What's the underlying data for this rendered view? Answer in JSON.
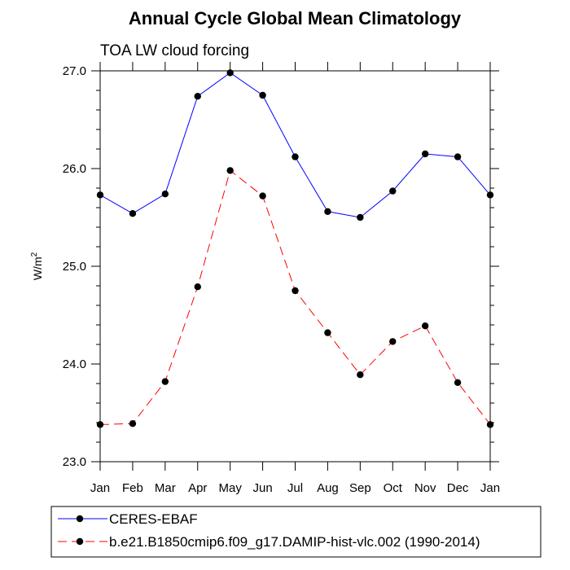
{
  "chart_data": {
    "type": "line",
    "title": "Annual Cycle Global Mean Climatology",
    "subtitle": "TOA LW cloud forcing",
    "ylabel": "W/m",
    "ylabel_superscript": "2",
    "xlabel": "",
    "categories": [
      "Jan",
      "Feb",
      "Mar",
      "Apr",
      "May",
      "Jun",
      "Jul",
      "Aug",
      "Sep",
      "Oct",
      "Nov",
      "Dec",
      "Jan"
    ],
    "ylim": [
      23.0,
      27.0
    ],
    "yticks": [
      "23.0",
      "24.0",
      "25.0",
      "26.0",
      "27.0"
    ],
    "grid": false,
    "legend_position": "bottom",
    "series": [
      {
        "name": "CERES-EBAF",
        "color": "#0000ff",
        "dash": "solid",
        "values": [
          25.73,
          25.54,
          25.74,
          26.74,
          26.98,
          26.75,
          26.12,
          25.56,
          25.5,
          25.77,
          26.15,
          26.12,
          25.73
        ]
      },
      {
        "name": "b.e21.B1850cmip6.f09_g17.DAMIP-hist-vlc.002 (1990-2014)",
        "color": "#ff0000",
        "dash": "dashed",
        "values": [
          23.38,
          23.39,
          23.82,
          24.79,
          25.98,
          25.72,
          24.75,
          24.32,
          23.89,
          24.23,
          24.39,
          23.81,
          23.38
        ]
      }
    ]
  }
}
